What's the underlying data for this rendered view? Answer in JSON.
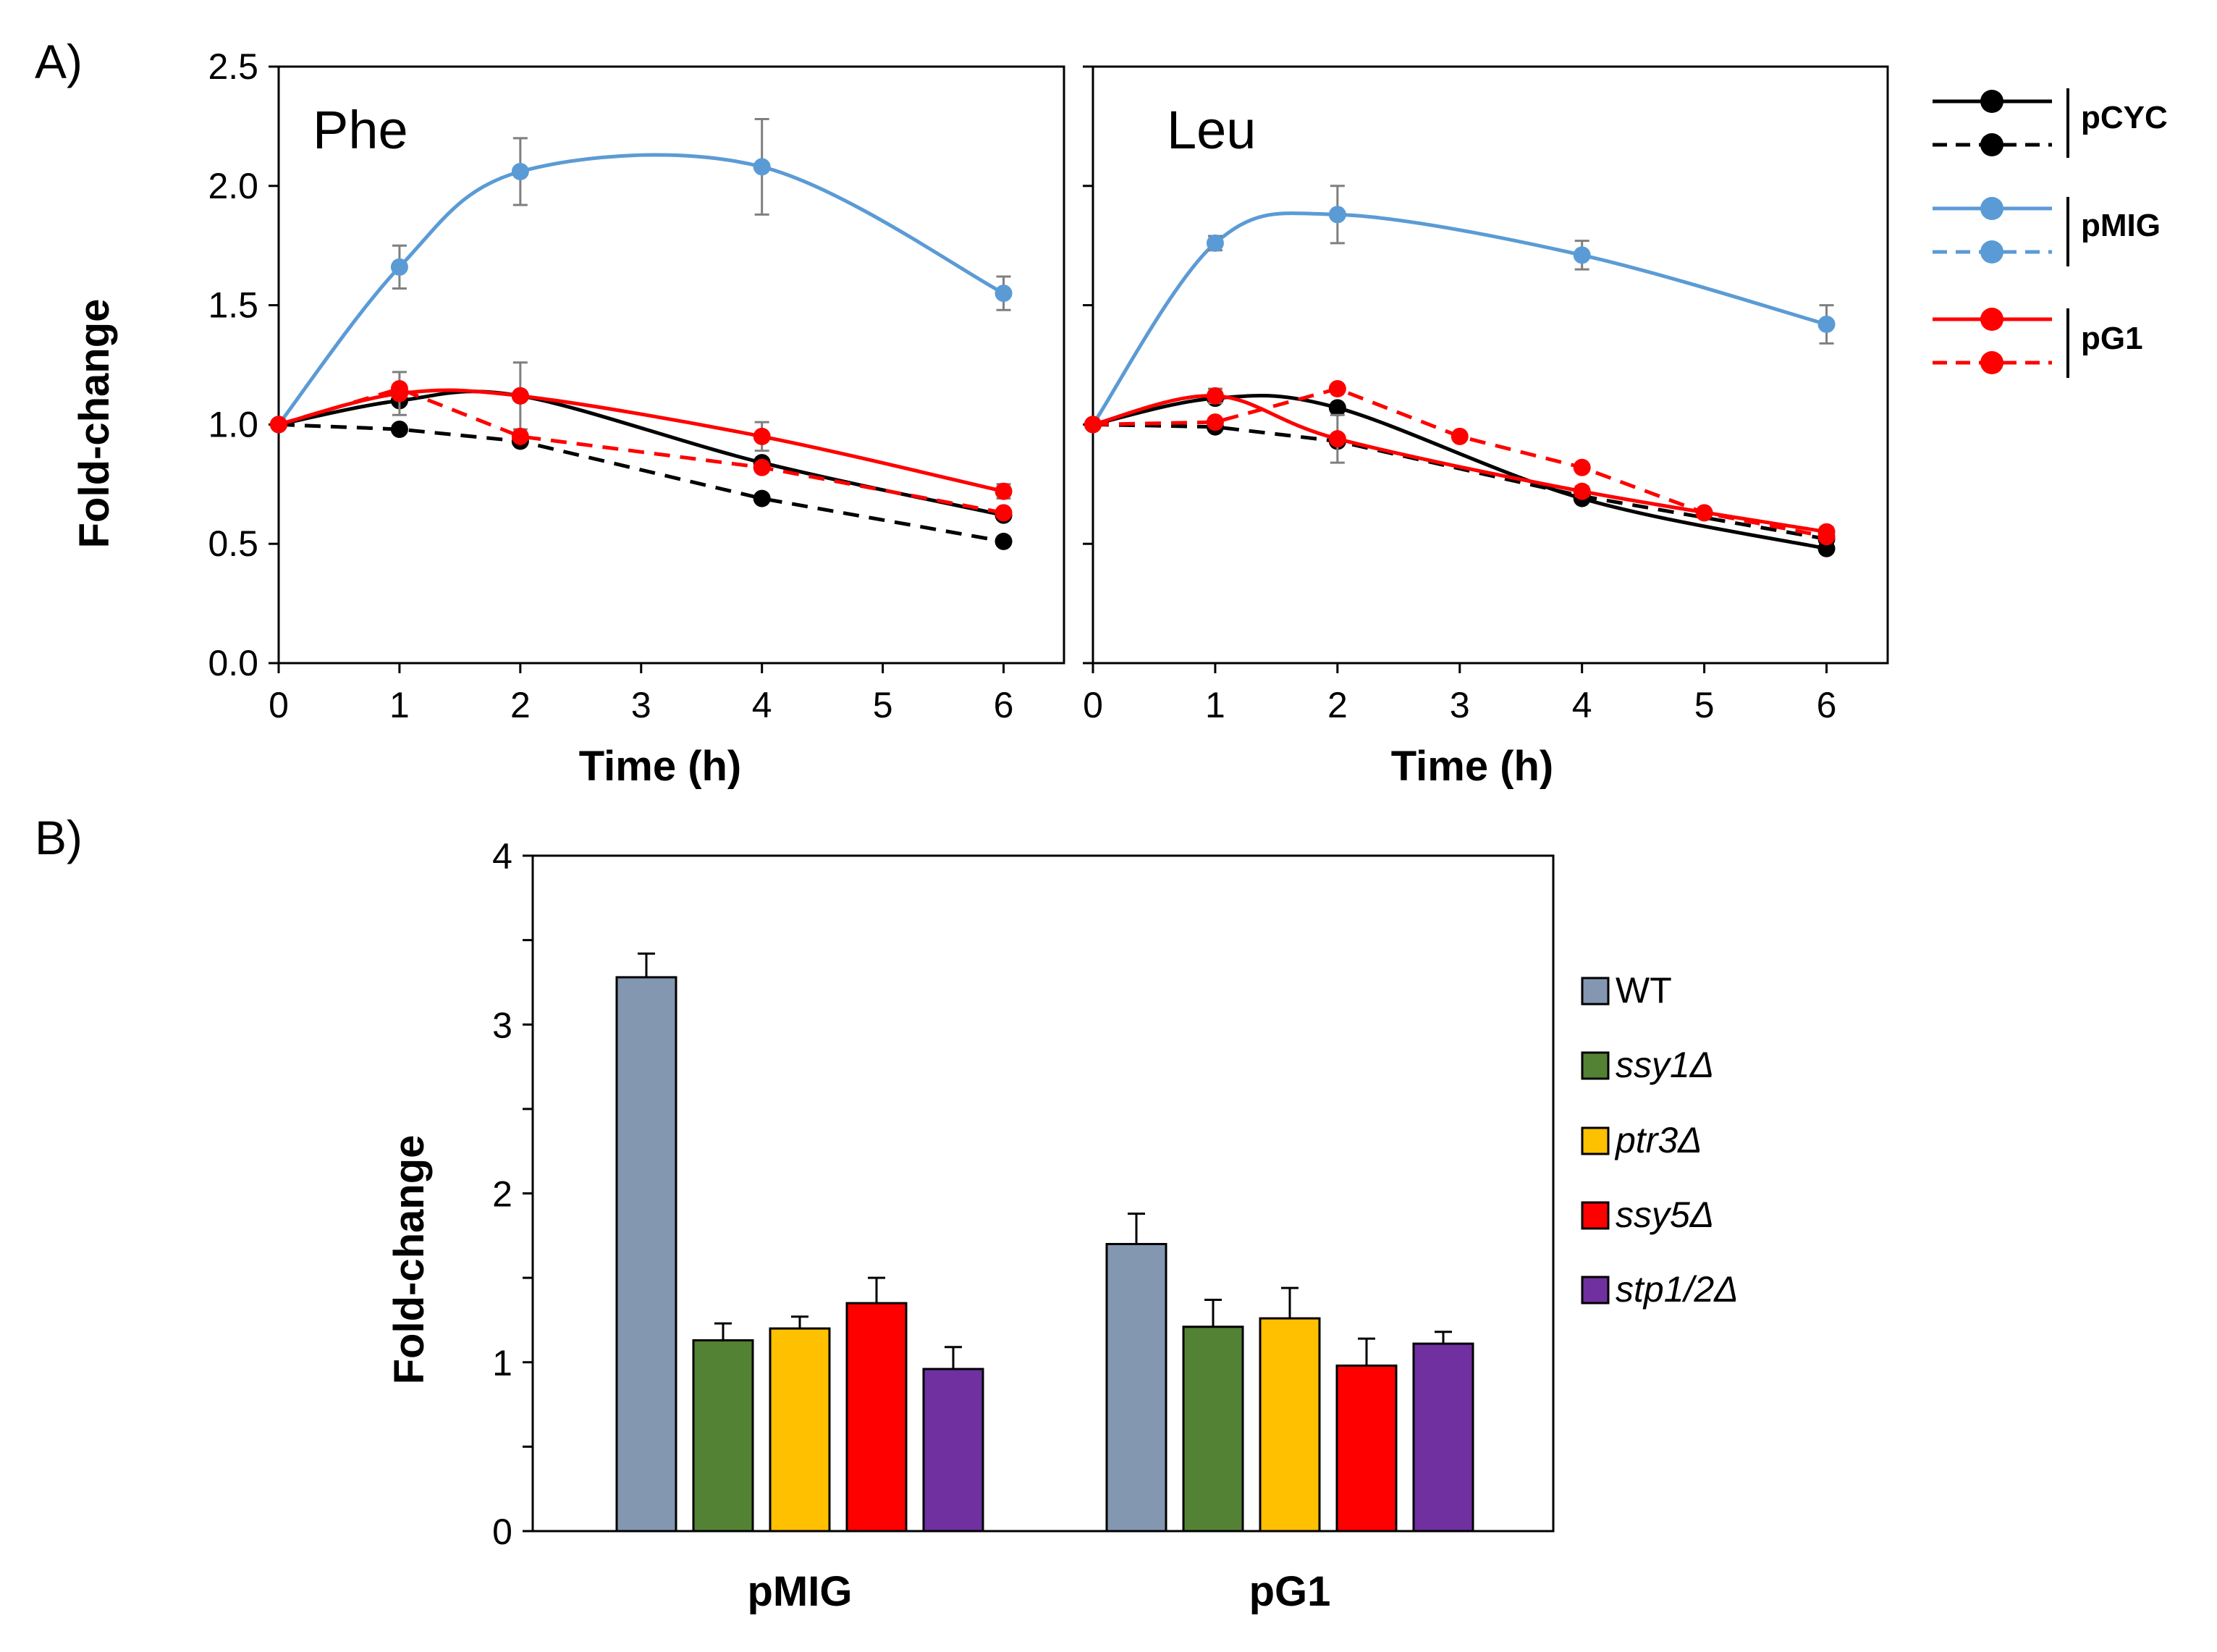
{
  "panel_labels": {
    "a": "A)",
    "b": "B)"
  },
  "chart_data": [
    {
      "type": "line",
      "panel": "A)",
      "title": "Phe",
      "xlabel": "Time (h)",
      "ylabel": "Fold-change",
      "xlim": [
        0,
        6.5
      ],
      "ylim": [
        0,
        2.5
      ],
      "xticks": [
        "0",
        "1",
        "2",
        "3",
        "4",
        "5",
        "6"
      ],
      "yticks": [
        "0.0",
        "0.5",
        "1.0",
        "1.5",
        "2.0",
        "2.5"
      ],
      "grid": false,
      "series": [
        {
          "group": "pCYC",
          "color": "#000000",
          "dashed": false,
          "x": [
            0,
            1,
            2,
            4,
            6
          ],
          "y": [
            1.0,
            1.1,
            1.12,
            0.84,
            0.62
          ]
        },
        {
          "group": "pCYC",
          "color": "#000000",
          "dashed": true,
          "x": [
            0,
            1,
            2,
            4,
            6
          ],
          "y": [
            1.0,
            0.98,
            0.93,
            0.69,
            0.51
          ]
        },
        {
          "group": "pMIG",
          "color": "#5B9BD5",
          "dashed": false,
          "x": [
            0,
            1,
            2,
            4,
            6
          ],
          "y": [
            1.0,
            1.66,
            2.06,
            2.08,
            1.55
          ],
          "err": [
            0,
            0.09,
            0.14,
            0.2,
            0.07
          ]
        },
        {
          "group": "pG1",
          "color": "#FF0000",
          "dashed": false,
          "x": [
            0,
            1,
            2,
            4,
            6
          ],
          "y": [
            1.0,
            1.13,
            1.12,
            0.95,
            0.72
          ],
          "err": [
            0,
            0.09,
            0.14,
            0.06,
            0.03
          ]
        },
        {
          "group": "pG1",
          "color": "#FF0000",
          "dashed": true,
          "x": [
            0,
            1,
            2,
            4,
            6
          ],
          "y": [
            1.0,
            1.15,
            0.95,
            0.82,
            0.63
          ]
        }
      ]
    },
    {
      "type": "line",
      "panel": "A)",
      "title": "Leu",
      "xlabel": "Time (h)",
      "ylabel": "",
      "xlim": [
        0,
        6.5
      ],
      "ylim": [
        0,
        2.5
      ],
      "xticks": [
        "0",
        "1",
        "2",
        "3",
        "4",
        "5",
        "6"
      ],
      "grid": false,
      "series": [
        {
          "group": "pCYC",
          "color": "#000000",
          "dashed": false,
          "x": [
            0,
            1,
            2,
            4,
            6
          ],
          "y": [
            1.0,
            1.11,
            1.07,
            0.69,
            0.48
          ]
        },
        {
          "group": "pCYC",
          "color": "#000000",
          "dashed": true,
          "x": [
            0,
            1,
            2,
            4,
            6
          ],
          "y": [
            1.0,
            0.99,
            0.93,
            0.7,
            0.52
          ]
        },
        {
          "group": "pMIG",
          "color": "#5B9BD5",
          "dashed": false,
          "x": [
            0,
            1,
            2,
            4,
            6
          ],
          "y": [
            1.0,
            1.76,
            1.88,
            1.71,
            1.42
          ],
          "err": [
            0,
            0.03,
            0.12,
            0.06,
            0.08
          ]
        },
        {
          "group": "pG1",
          "color": "#FF0000",
          "dashed": false,
          "x": [
            0,
            1,
            2,
            4,
            6
          ],
          "y": [
            1.0,
            1.12,
            0.94,
            0.72,
            0.55
          ],
          "err": [
            0,
            0.03,
            0.1,
            0.02,
            0.02
          ]
        },
        {
          "group": "pG1",
          "color": "#FF0000",
          "dashed": true,
          "x": [
            0,
            1,
            2,
            3,
            4,
            5,
            6
          ],
          "y": [
            1.0,
            1.01,
            1.15,
            0.95,
            0.82,
            0.63,
            0.53
          ]
        }
      ]
    },
    {
      "type": "bar",
      "panel": "B)",
      "ylabel": "Fold-change",
      "ylim": [
        0,
        4
      ],
      "yticks": [
        "0",
        "1",
        "2",
        "3",
        "4"
      ],
      "categories": [
        "pMIG",
        "pG1"
      ],
      "grid": false,
      "legend_position": "right",
      "series": [
        {
          "name": "WT",
          "color": "#8497B0",
          "values": [
            3.28,
            1.7
          ],
          "err": [
            0.14,
            0.18
          ]
        },
        {
          "name": "ssy1Δ",
          "color": "#548235",
          "values": [
            1.13,
            1.21
          ],
          "err": [
            0.1,
            0.16
          ]
        },
        {
          "name": "ptr3Δ",
          "color": "#FFC000",
          "values": [
            1.2,
            1.26
          ],
          "err": [
            0.07,
            0.18
          ]
        },
        {
          "name": "ssy5Δ",
          "color": "#FF0000",
          "values": [
            1.35,
            0.98
          ],
          "err": [
            0.15,
            0.16
          ]
        },
        {
          "name": "stp1/2Δ",
          "color": "#7030A0",
          "values": [
            0.96,
            1.11
          ],
          "err": [
            0.13,
            0.07
          ]
        }
      ]
    }
  ],
  "legend_a": [
    {
      "label": "pCYC",
      "color": "#000000"
    },
    {
      "label": "pMIG",
      "color": "#5B9BD5"
    },
    {
      "label": "pG1",
      "color": "#FF0000"
    }
  ]
}
